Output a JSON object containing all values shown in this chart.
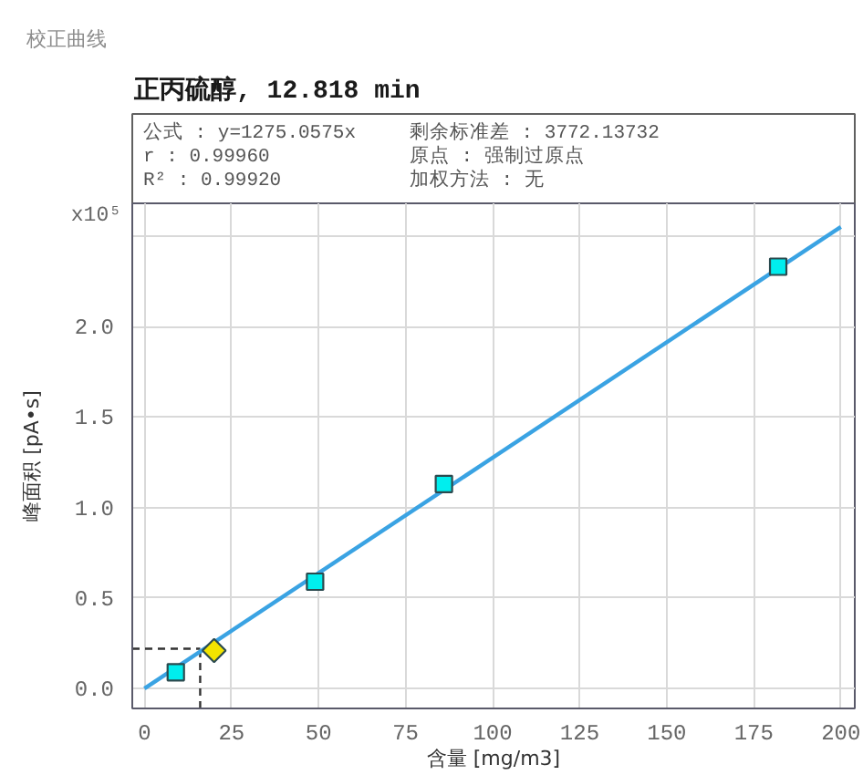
{
  "chart_data": {
    "type": "scatter",
    "title": "校正曲线",
    "subtitle": "正丙硫醇, 12.818 min",
    "xlabel": "含量 [mg/m3]",
    "ylabel": "峰面积 [pA•s]",
    "annotations": [
      "公式 : y=1275.0575x",
      "剩余标准差 : 3772.13732",
      "r : 0.99960",
      "原点 : 强制过原点",
      "R² : 0.99920",
      "加权方法 : 无",
      "x10⁵"
    ],
    "xlim": [
      -3.5,
      204
    ],
    "ylim": [
      -0.11,
      2.68
    ],
    "xticks": [
      0,
      25,
      50,
      75,
      100,
      125,
      150,
      175,
      200
    ],
    "yticks": [
      {
        "value": 0,
        "label": "0.0"
      },
      0.5,
      {
        "value": 1,
        "label": "1.0"
      },
      1.5,
      {
        "value": 2,
        "label": "2.0"
      },
      {
        "value": 2.5,
        "label": null
      }
    ],
    "grid": true,
    "series": [
      {
        "type": "line",
        "color": "#3aa3e3",
        "x": [
          0,
          200
        ],
        "values": [
          0,
          2.55
        ],
        "marker": "none",
        "line_style": "solid"
      },
      {
        "color": "#00eeee",
        "x": [
          9,
          49,
          86,
          182
        ],
        "values": [
          0.09,
          0.59,
          1.13,
          2.33
        ],
        "marker": "square"
      },
      {
        "color": "#f2e400",
        "x": [
          20
        ],
        "values": [
          0.21
        ],
        "marker": "diamond"
      }
    ],
    "ref_lines": [
      {
        "axis": "x",
        "value": 16,
        "color": "#333333",
        "line_style": "dashed"
      },
      {
        "axis": "y",
        "value": 0.22,
        "color": "#333333",
        "line_style": "dashed"
      }
    ]
  }
}
